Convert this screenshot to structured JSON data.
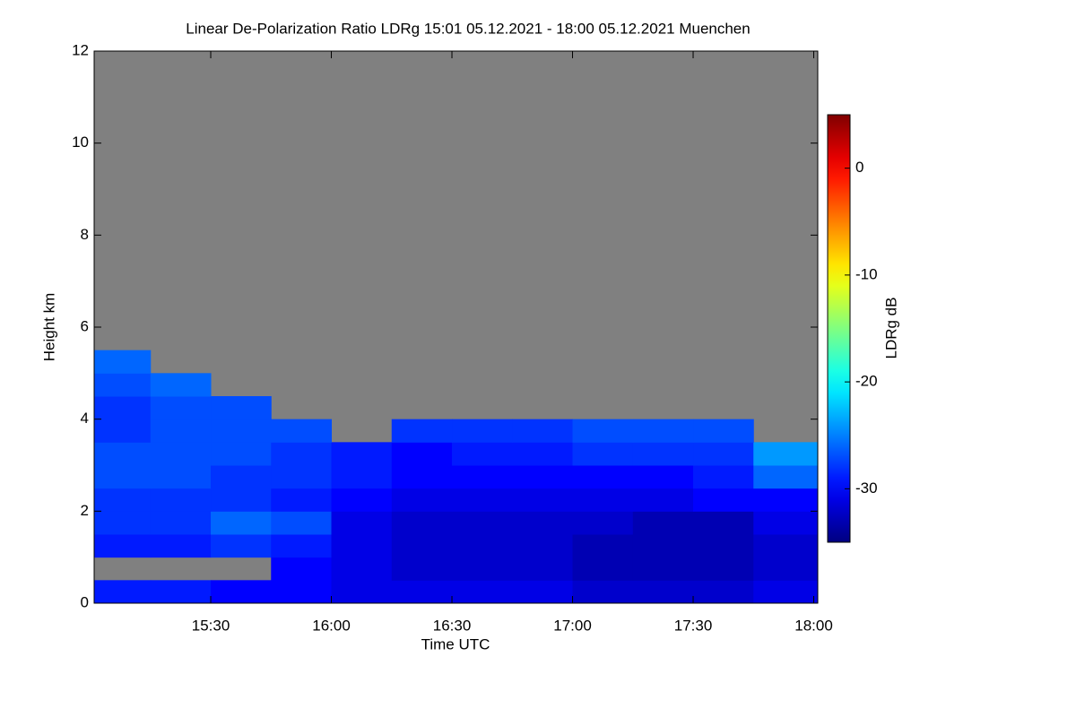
{
  "chart_data": {
    "type": "heatmap",
    "title": "Linear De-Polarization Ratio LDRg   15:01 05.12.2021 - 18:00 05.12.2021 Muenchen",
    "x_label": "Time UTC",
    "y_label": "Height km",
    "z_label": "LDRg dB",
    "x": [
      901,
      915,
      930,
      945,
      960,
      975,
      990,
      1005,
      1020,
      1035,
      1050,
      1065
    ],
    "y": [
      0,
      0.5,
      1,
      1.5,
      2,
      2.5,
      3,
      3.5,
      4,
      4.5,
      5
    ],
    "values": [
      [
        -29,
        -29,
        -30,
        -30,
        -31,
        -31,
        -31,
        -31,
        -32,
        -32,
        -32,
        -31
      ],
      [
        null,
        null,
        null,
        -30,
        -31,
        -32,
        -32,
        -32,
        -33,
        -33,
        -33,
        -32
      ],
      [
        -29,
        -29,
        -28,
        -29,
        -31,
        -32,
        -32,
        -32,
        -33,
        -33,
        -33,
        -32
      ],
      [
        -28,
        -28,
        -26,
        -27,
        -31,
        -32,
        -32,
        -32,
        -32,
        -33,
        -33,
        -31
      ],
      [
        -28,
        -28,
        -28,
        -29,
        -30,
        -31,
        -31,
        -31,
        -31,
        -31,
        -30,
        -30
      ],
      [
        -27,
        -27,
        -28,
        -28,
        -29,
        -30,
        -30,
        -30,
        -30,
        -30,
        -29,
        -26
      ],
      [
        -27,
        -27,
        -27,
        -28,
        -29,
        -30,
        -29,
        -29,
        -28,
        -28,
        -28,
        -24
      ],
      [
        -28,
        -27,
        -27,
        -27,
        null,
        -28,
        -28,
        -28,
        -27,
        -27,
        -27,
        null
      ],
      [
        -28,
        -27,
        -27,
        null,
        null,
        null,
        null,
        null,
        null,
        null,
        null,
        null
      ],
      [
        -27,
        -26,
        null,
        null,
        null,
        null,
        null,
        null,
        null,
        null,
        null,
        null
      ],
      [
        -26,
        null,
        null,
        null,
        null,
        null,
        null,
        null,
        null,
        null,
        null,
        null
      ]
    ],
    "xlim": [
      901,
      1081
    ],
    "ylim": [
      0,
      12
    ],
    "zlim": [
      -35,
      5
    ],
    "xticks": [
      {
        "value": 930,
        "label": "15:30"
      },
      {
        "value": 960,
        "label": "16:00"
      },
      {
        "value": 990,
        "label": "16:30"
      },
      {
        "value": 1020,
        "label": "17:00"
      },
      {
        "value": 1050,
        "label": "17:30"
      },
      {
        "value": 1080,
        "label": "18:00"
      }
    ],
    "yticks": [
      0,
      2,
      4,
      6,
      8,
      10,
      12
    ],
    "zticks": [
      0,
      -10,
      -20,
      -30
    ],
    "nodata_color": "#808080",
    "colormap": "jet"
  }
}
